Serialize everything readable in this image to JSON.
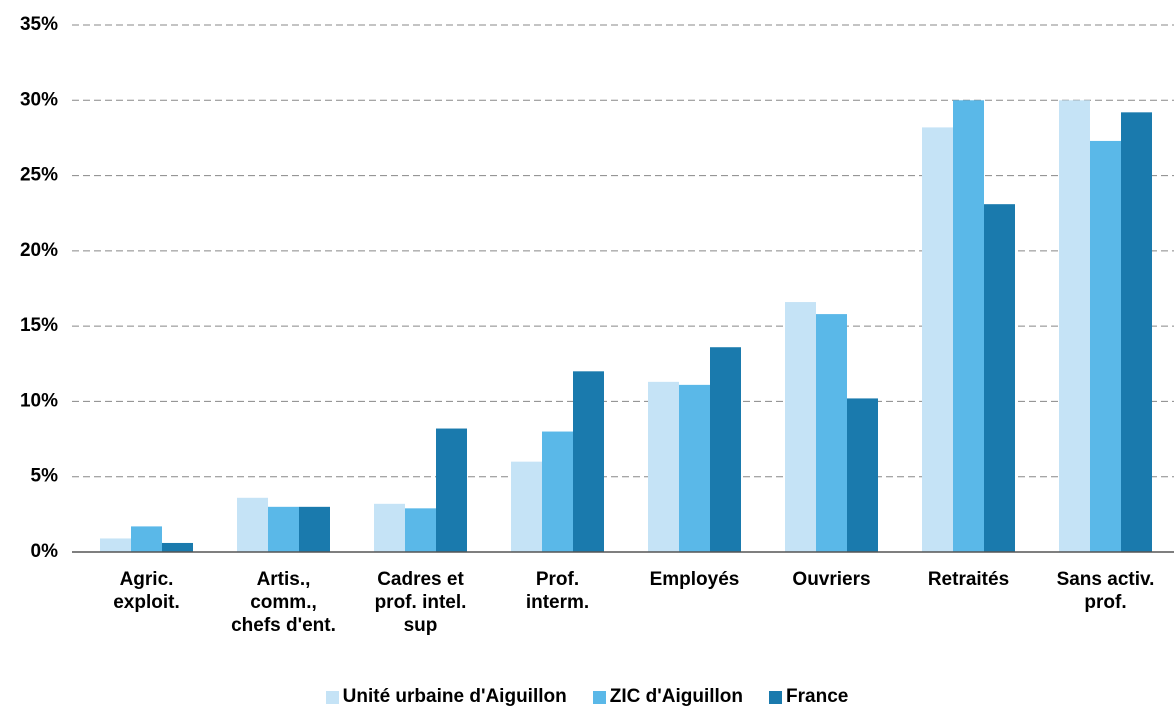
{
  "chart_data": {
    "type": "bar",
    "categories": [
      "Agric.\nexploit.",
      "Artis.,\ncomm.,\nchefs d'ent.",
      "Cadres et\nprof. intel.\nsup",
      "Prof.\ninterm.",
      "Employés",
      "Ouvriers",
      "Retraités",
      "Sans activ.\nprof."
    ],
    "series": [
      {
        "name": "Unité urbaine d'Aiguillon",
        "color": "#c5e3f6",
        "values": [
          0.9,
          3.6,
          3.2,
          6.0,
          11.3,
          16.6,
          28.2,
          30.0
        ]
      },
      {
        "name": "ZIC d'Aiguillon",
        "color": "#5ab8e8",
        "values": [
          1.7,
          3.0,
          2.9,
          8.0,
          11.1,
          15.8,
          30.0,
          27.3
        ]
      },
      {
        "name": "France",
        "color": "#1a7aad",
        "values": [
          0.6,
          3.0,
          8.2,
          12.0,
          13.6,
          10.2,
          23.1,
          29.2
        ]
      }
    ],
    "ylim": [
      0,
      35
    ],
    "yticks": [
      {
        "value": 0,
        "label": "0%"
      },
      {
        "value": 5,
        "label": "5%"
      },
      {
        "value": 10,
        "label": "10%"
      },
      {
        "value": 15,
        "label": "15%"
      },
      {
        "value": 20,
        "label": "20%"
      },
      {
        "value": 25,
        "label": "25%"
      },
      {
        "value": 30,
        "label": "30%"
      },
      {
        "value": 35,
        "label": "35%"
      }
    ],
    "grid": true,
    "legend": "bottom"
  }
}
